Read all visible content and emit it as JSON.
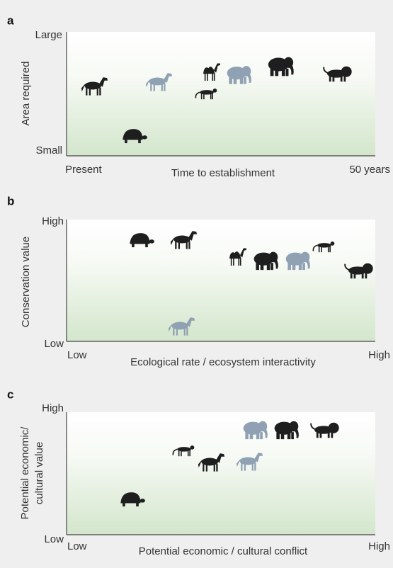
{
  "panels": [
    {
      "label": "a",
      "y_axis": {
        "title": [
          "Area required"
        ],
        "high": "Large",
        "low": "Small"
      },
      "x_axis": {
        "title": "Time to establishment",
        "low": "Present",
        "high": "50 years"
      }
    },
    {
      "label": "b",
      "y_axis": {
        "title": [
          "Conservation value"
        ],
        "high": "High",
        "low": "Low"
      },
      "x_axis": {
        "title": "Ecological rate / ecosystem interactivity",
        "low": "Low",
        "high": "High"
      }
    },
    {
      "label": "c",
      "y_axis": {
        "title": [
          "Potential economic/",
          "cultural value"
        ],
        "high": "High",
        "low": "Low"
      },
      "x_axis": {
        "title": "Potential economic / cultural conflict",
        "low": "Low",
        "high": "High"
      }
    }
  ]
}
